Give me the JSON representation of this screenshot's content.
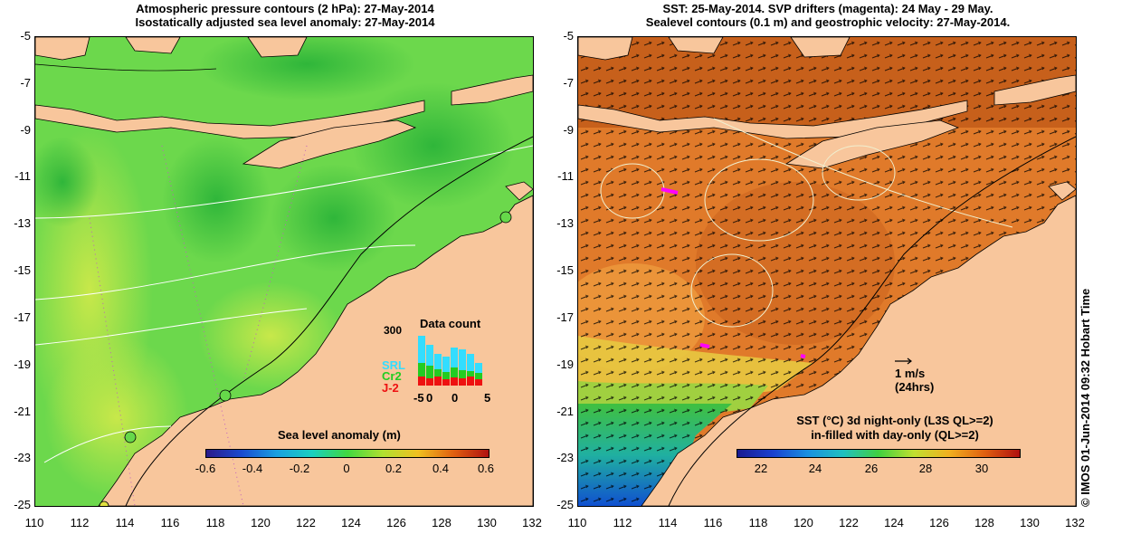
{
  "left_panel": {
    "title_line1": "Atmospheric pressure contours (2 hPa): 27-May-2014",
    "title_line2": "Isostatically adjusted sea level anomaly: 27-May-2014",
    "colorbar": {
      "title": "Sea level anomaly (m)",
      "ticks": [
        "-0.6",
        "-0.4",
        "-0.2",
        "0",
        "0.2",
        "0.4",
        "0.6"
      ]
    },
    "data_count": {
      "title": "Data count",
      "ymax_label": "300",
      "xticks": [
        "-5",
        "0",
        "0",
        "5"
      ],
      "legend": [
        {
          "label": "SRL",
          "color": "#33ddff"
        },
        {
          "label": "Cr2",
          "color": "#22cc22"
        },
        {
          "label": "J-2",
          "color": "#ee1111"
        }
      ]
    }
  },
  "right_panel": {
    "title_line1": "SST: 25-May-2014. SVP drifters (magenta): 24 May - 29 May.",
    "title_line2": "Sealevel contours (0.1 m) and geostrophic velocity: 27-May-2014.",
    "scale_label": "1 m/s",
    "scale_sublabel": "(24hrs)",
    "colorbar": {
      "title_line1": "SST (°C)  3d night-only (L3S QL>=2)",
      "title_line2": "in-filled with day-only (QL>=2)",
      "ticks": [
        "22",
        "24",
        "26",
        "28",
        "30"
      ]
    }
  },
  "axes": {
    "y_ticks": [
      "-5",
      "-7",
      "-9",
      "-11",
      "-13",
      "-15",
      "-17",
      "-19",
      "-21",
      "-23",
      "-25"
    ],
    "x_ticks": [
      "110",
      "112",
      "114",
      "116",
      "118",
      "120",
      "122",
      "124",
      "126",
      "128",
      "130",
      "132"
    ]
  },
  "timestamp": "© IMOS 01-Jun-2014 09:32 Hobart Time",
  "colors": {
    "land": "#f8c69c",
    "sla_base": "#66d84a",
    "sst_base": "#e07a2a"
  }
}
